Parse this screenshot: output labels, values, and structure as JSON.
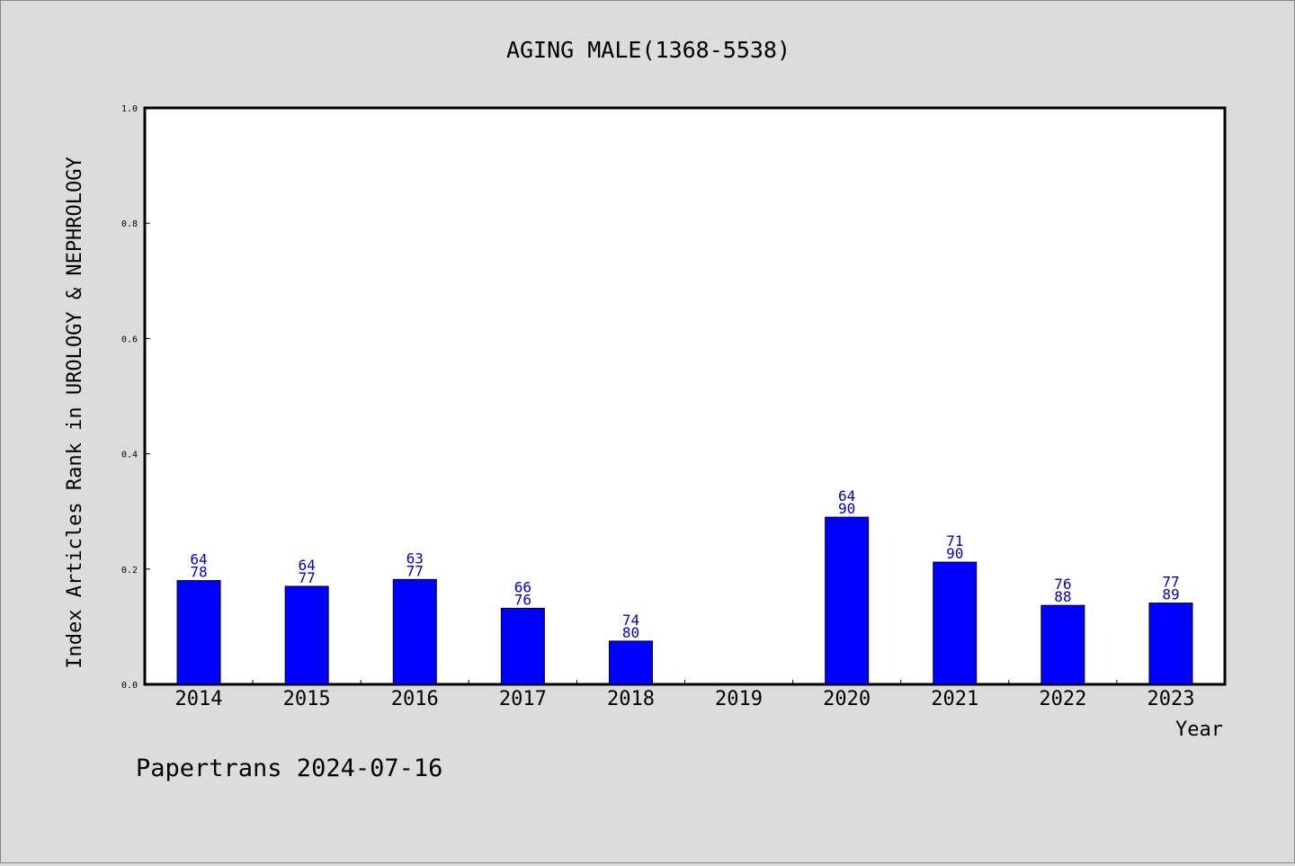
{
  "chart_data": {
    "type": "bar",
    "title": "AGING MALE(1368-5538)",
    "xlabel": "Year",
    "ylabel": "Index Articles Rank in UROLOGY & NEPHROLOGY",
    "categories": [
      "2014",
      "2015",
      "2016",
      "2017",
      "2018",
      "2019",
      "2020",
      "2021",
      "2022",
      "2023"
    ],
    "values": [
      0.18,
      0.17,
      0.182,
      0.132,
      0.075,
      null,
      0.29,
      0.212,
      0.137,
      0.141
    ],
    "label_top": [
      "64",
      "64",
      "63",
      "66",
      "74",
      "",
      "64",
      "71",
      "76",
      "77"
    ],
    "label_bottom": [
      "78",
      "77",
      "77",
      "76",
      "80",
      "",
      "90",
      "90",
      "88",
      "89"
    ],
    "ylim": [
      0,
      1.0
    ],
    "yticks": [
      "0.0",
      "0.2",
      "0.4",
      "0.6",
      "0.8",
      "1.0"
    ],
    "grid": false,
    "bar_color": "#0000ff",
    "label_color": "#0000cc"
  },
  "footer": "Papertrans 2024-07-16"
}
